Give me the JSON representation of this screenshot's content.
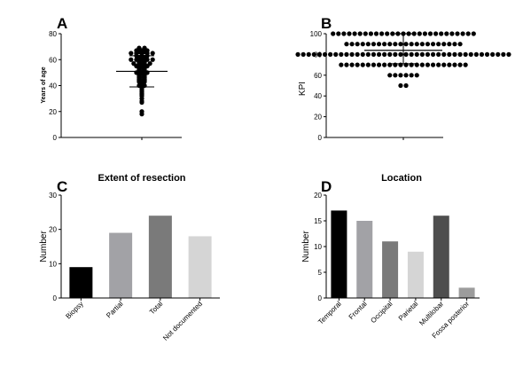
{
  "chart_data": [
    {
      "panel": "A",
      "type": "scatter",
      "ylabel": "Years of age",
      "ylim": [
        0,
        80
      ],
      "yticks": [
        0,
        20,
        40,
        60,
        80
      ],
      "mean": 51,
      "sd_range": [
        39,
        63
      ],
      "points": [
        69,
        69,
        68,
        68,
        67,
        67,
        67,
        66,
        66,
        65,
        65,
        65,
        65,
        65,
        63,
        63,
        63,
        62,
        62,
        61,
        61,
        60,
        60,
        60,
        60,
        60,
        59,
        59,
        58,
        58,
        57,
        57,
        57,
        57,
        56,
        55,
        55,
        55,
        54,
        54,
        53,
        53,
        52,
        52,
        51,
        51,
        50,
        50,
        50,
        49,
        49,
        48,
        48,
        47,
        47,
        46,
        46,
        45,
        45,
        44,
        44,
        43,
        43,
        42,
        41,
        40,
        40,
        39,
        38,
        37,
        36,
        35,
        34,
        33,
        32,
        30,
        28,
        27,
        20,
        18
      ]
    },
    {
      "panel": "B",
      "type": "scatter",
      "ylabel": "KPI",
      "ylim": [
        0,
        100
      ],
      "yticks": [
        0,
        20,
        40,
        60,
        80,
        100
      ],
      "mean": 84,
      "sd_range": [
        71,
        100
      ],
      "points": [
        100,
        100,
        100,
        100,
        100,
        100,
        100,
        100,
        100,
        100,
        100,
        100,
        100,
        100,
        100,
        100,
        100,
        100,
        100,
        100,
        100,
        100,
        100,
        100,
        100,
        100,
        100,
        90,
        90,
        90,
        90,
        90,
        90,
        90,
        90,
        90,
        90,
        90,
        90,
        90,
        90,
        90,
        90,
        90,
        90,
        90,
        90,
        90,
        90,
        80,
        80,
        80,
        80,
        80,
        80,
        80,
        80,
        80,
        80,
        80,
        80,
        80,
        80,
        80,
        80,
        80,
        80,
        80,
        80,
        80,
        80,
        80,
        80,
        80,
        80,
        80,
        80,
        80,
        80,
        80,
        80,
        80,
        80,
        80,
        80,
        80,
        80,
        80,
        80,
        70,
        70,
        70,
        70,
        70,
        70,
        70,
        70,
        70,
        70,
        70,
        70,
        70,
        70,
        70,
        70,
        70,
        70,
        70,
        70,
        70,
        70,
        70,
        70,
        60,
        60,
        60,
        60,
        60,
        60,
        50,
        50
      ]
    },
    {
      "panel": "C",
      "type": "bar",
      "title": "Extent of resection",
      "ylabel": "Number",
      "ylim": [
        0,
        30
      ],
      "yticks": [
        0,
        10,
        20,
        30
      ],
      "categories": [
        "Biopsy",
        "Partial",
        "Total",
        "Not documented"
      ],
      "values": [
        9,
        19,
        24,
        18
      ],
      "colors": [
        "#000000",
        "#a2a2a6",
        "#7a7a7a",
        "#d5d5d5"
      ]
    },
    {
      "panel": "D",
      "type": "bar",
      "title": "Location",
      "ylabel": "Number",
      "ylim": [
        0,
        20
      ],
      "yticks": [
        0,
        5,
        10,
        15,
        20
      ],
      "categories": [
        "Temporal",
        "Frontal",
        "Occipital",
        "Parietal",
        "Multilobar",
        "Fossa posterior"
      ],
      "values": [
        17,
        15,
        11,
        9,
        16,
        2
      ],
      "colors": [
        "#000000",
        "#a2a2a6",
        "#7a7a7a",
        "#d5d5d5",
        "#4e4e4e",
        "#9c9c9c"
      ]
    }
  ]
}
